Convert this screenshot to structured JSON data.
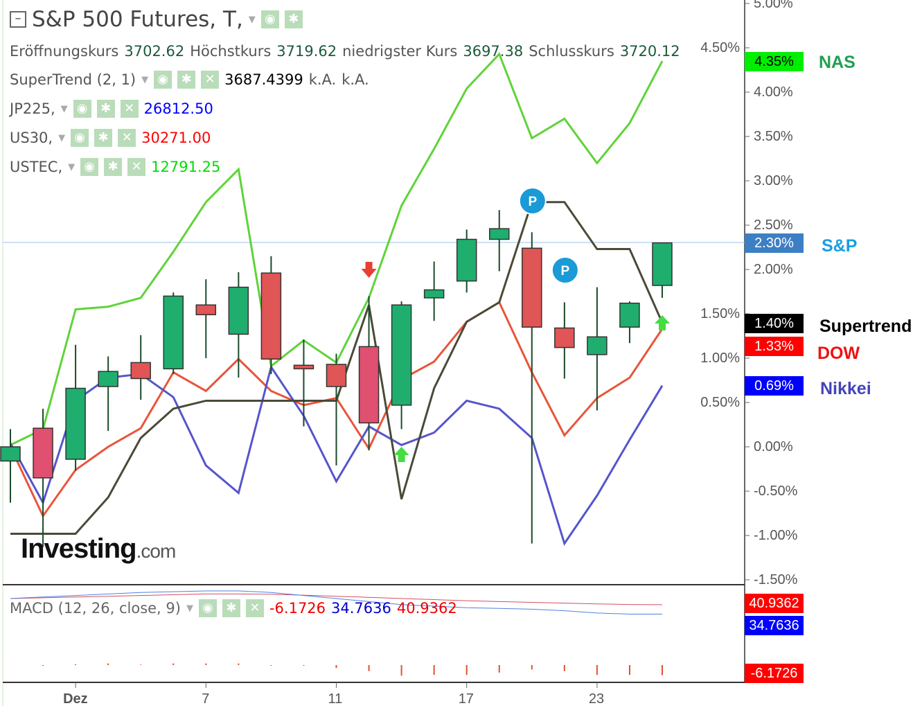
{
  "header": {
    "title": "S&P 500 Futures, T,",
    "ohlc": [
      {
        "label": "Eröffnungskurs",
        "value": "3702.62"
      },
      {
        "label": "Höchstkurs",
        "value": "3719.62"
      },
      {
        "label": "niedrigster Kurs",
        "value": "3697.38"
      },
      {
        "label": "Schlusskurs",
        "value": "3720.12"
      }
    ]
  },
  "indicators": [
    {
      "name": "SuperTrend (2, 1)",
      "values": [
        "3687.4399",
        "k.A.",
        "k.A."
      ],
      "color": "#000000"
    },
    {
      "name": "JP225,",
      "values": [
        "26812.50"
      ],
      "color": "#0000ff"
    },
    {
      "name": "US30,",
      "values": [
        "30271.00"
      ],
      "color": "#ff0000"
    },
    {
      "name": "USTEC,",
      "values": [
        "12791.25"
      ],
      "color": "#00dd00"
    }
  ],
  "macd": {
    "label": "MACD (12, 26, close, 9)",
    "hist": "-6.1726",
    "macd": "34.7636",
    "signal": "40.9362"
  },
  "icons": {
    "eye": "eye-icon",
    "gear": "gear-icon",
    "close": "close-icon",
    "collapse": "collapse-icon"
  },
  "logo": {
    "brand": "Investing",
    "suffix": ".com"
  },
  "chart_data": {
    "type": "candlestick",
    "yaxis_ticks": [
      "5.00%",
      "4.50%",
      "4.00%",
      "3.50%",
      "3.00%",
      "2.50%",
      "2.00%",
      "1.50%",
      "1.00%",
      "0.50%",
      "0.00%",
      "-0.50%",
      "-1.00%",
      "-1.50%"
    ],
    "ylim": [
      -1.5,
      5.0
    ],
    "xaxis_ticks": [
      {
        "label": "Dez",
        "index": 2
      },
      {
        "label": "7",
        "index": 6
      },
      {
        "label": "11",
        "index": 10
      },
      {
        "label": "17",
        "index": 14
      },
      {
        "label": "23",
        "index": 18
      }
    ],
    "candles": [
      [
        -0.16,
        0.2,
        -0.63,
        0.0
      ],
      [
        0.21,
        0.43,
        -1.13,
        -0.35
      ],
      [
        -0.14,
        1.15,
        -0.27,
        0.66
      ],
      [
        0.68,
        1.02,
        0.18,
        0.85
      ],
      [
        0.95,
        1.26,
        0.53,
        0.77
      ],
      [
        0.88,
        1.74,
        0.82,
        1.7
      ],
      [
        1.6,
        1.89,
        1.0,
        1.49
      ],
      [
        1.27,
        1.97,
        0.78,
        1.8
      ],
      [
        1.96,
        2.15,
        0.82,
        0.99
      ],
      [
        0.92,
        1.21,
        0.23,
        0.88
      ],
      [
        0.93,
        1.05,
        -0.21,
        0.68
      ],
      [
        1.13,
        1.7,
        -0.04,
        0.27
      ],
      [
        0.47,
        1.64,
        0.2,
        1.6
      ],
      [
        1.68,
        2.09,
        1.42,
        1.77
      ],
      [
        1.87,
        2.45,
        1.74,
        2.34
      ],
      [
        2.34,
        2.67,
        1.98,
        2.46
      ],
      [
        2.24,
        2.42,
        -1.09,
        1.35
      ],
      [
        1.34,
        1.63,
        0.77,
        1.12
      ],
      [
        1.04,
        1.8,
        0.41,
        1.24
      ],
      [
        1.35,
        1.64,
        1.17,
        1.62
      ],
      [
        1.82,
        2.3,
        1.68,
        2.3
      ]
    ],
    "candle_format": [
      "open",
      "high",
      "low",
      "close"
    ],
    "series": [
      {
        "name": "NAS",
        "color": "#5fd33a",
        "label_color": "#1fa050",
        "last": "4.35%",
        "badge": "#00ee00",
        "values": [
          0.02,
          0.2,
          1.55,
          1.58,
          1.68,
          2.2,
          2.76,
          3.13,
          0.91,
          1.2,
          0.95,
          1.68,
          2.72,
          3.36,
          4.04,
          4.43,
          3.48,
          3.7,
          3.2,
          3.65,
          4.35
        ]
      },
      {
        "name": "DOW",
        "color": "#e8553a",
        "label_color": "#ee1111",
        "last": "1.33%",
        "badge": "#ff0000",
        "values": [
          0.0,
          -0.78,
          -0.26,
          0.0,
          0.21,
          0.84,
          0.63,
          0.99,
          0.63,
          0.47,
          0.55,
          -0.02,
          0.76,
          0.96,
          1.41,
          1.63,
          0.84,
          0.13,
          0.55,
          0.78,
          1.33
        ]
      },
      {
        "name": "Nikkei",
        "color": "#5555cc",
        "label_color": "#4444bb",
        "last": "0.69%",
        "badge": "#0000ff",
        "values": [
          0.04,
          -0.63,
          0.52,
          0.78,
          0.82,
          0.56,
          -0.21,
          -0.52,
          0.9,
          0.35,
          -0.39,
          0.23,
          0.02,
          0.16,
          0.52,
          0.43,
          0.1,
          -1.09,
          -0.55,
          0.08,
          0.69
        ]
      },
      {
        "name": "Supertrend",
        "color": "#4a4a38",
        "label_color": "#000000",
        "last": "1.40%",
        "badge": "#000000",
        "values": [
          -0.98,
          -0.98,
          -0.98,
          -0.57,
          0.1,
          0.43,
          0.52,
          0.52,
          0.52,
          0.52,
          0.52,
          1.6,
          -0.59,
          0.66,
          1.41,
          1.63,
          2.76,
          2.76,
          2.23,
          2.23,
          1.4
        ]
      }
    ],
    "sp_last": {
      "name": "S&P",
      "value": "2.30%",
      "badge": "#3d7fc4",
      "label_color": "#1a9ee0"
    },
    "signals": [
      {
        "type": "sell",
        "index": 11
      },
      {
        "type": "buy",
        "index": 12
      },
      {
        "type": "buy",
        "index": 20
      }
    ],
    "pivots": [
      {
        "label": "P",
        "index": 16,
        "value": 2.7
      },
      {
        "label": "P",
        "index": 17,
        "value": 1.97
      }
    ],
    "macd_series": {
      "macd": [
        45,
        46,
        47,
        48,
        49,
        49.5,
        50,
        50,
        49,
        47,
        45,
        43,
        41,
        40,
        39,
        38.5,
        38,
        37,
        35.5,
        34.8,
        34.76
      ],
      "signal": [
        45,
        45.5,
        46,
        46.5,
        47,
        47.5,
        48,
        48,
        47.8,
        47.2,
        46.5,
        45.8,
        45,
        44.3,
        43.6,
        43,
        42.5,
        42,
        41.5,
        41.1,
        40.94
      ],
      "hist": [
        0.5,
        0,
        1,
        1.5,
        0.8,
        1.5,
        1.5,
        1.5,
        0,
        0,
        -1.5,
        -3.5,
        -6.5,
        -6,
        -6,
        -4.5,
        -2.5,
        -3.5,
        -6,
        -6,
        -6.17
      ]
    }
  }
}
